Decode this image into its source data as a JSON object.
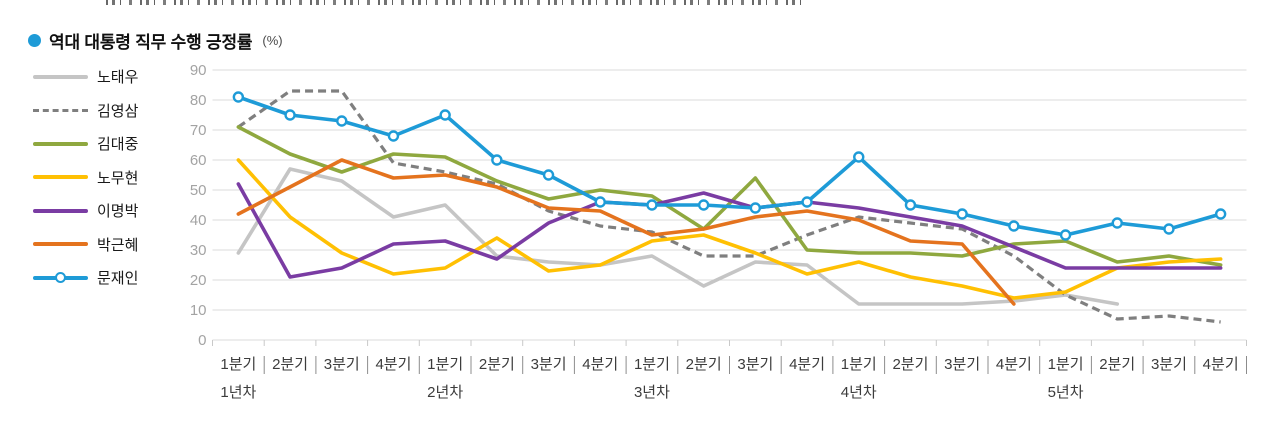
{
  "top_strip": {
    "clipped_partial_text_visible": true
  },
  "title": {
    "bullet_icon": "blue-dot",
    "text": "역대 대통령 직무 수행 긍정률",
    "unit": "(%)"
  },
  "chart_data": {
    "type": "line",
    "title": "역대 대통령 직무 수행 긍정률 (%)",
    "ylim": [
      0,
      90
    ],
    "y_tick_labels": [
      "90",
      "80",
      "70",
      "60",
      "50",
      "40",
      "30",
      "20",
      "10",
      "0"
    ],
    "grid": true,
    "legend_position": "left",
    "quarter_labels": [
      "1분기",
      "2분기",
      "3분기",
      "4분기"
    ],
    "quarters_total": 20,
    "years": [
      {
        "label": "1년차",
        "start_quarter": 0
      },
      {
        "label": "2년차",
        "start_quarter": 4
      },
      {
        "label": "3년차",
        "start_quarter": 8
      },
      {
        "label": "4년차",
        "start_quarter": 12
      },
      {
        "label": "5년차",
        "start_quarter": 16
      }
    ],
    "series": [
      {
        "name": "노태우",
        "color": "#c5c5c5",
        "style": "solid",
        "marker": "none",
        "values": [
          29,
          57,
          53,
          41,
          45,
          28,
          26,
          25,
          28,
          18,
          26,
          25,
          12,
          12,
          12,
          13,
          15,
          12,
          null,
          null
        ]
      },
      {
        "name": "김영삼",
        "color": "#7f7f7f",
        "style": "dashed",
        "marker": "none",
        "values": [
          71,
          83,
          83,
          59,
          56,
          52,
          43,
          38,
          36,
          28,
          28,
          35,
          41,
          39,
          37,
          28,
          15,
          7,
          8,
          6
        ]
      },
      {
        "name": "김대중",
        "color": "#8fa83f",
        "style": "solid",
        "marker": "none",
        "values": [
          71,
          62,
          56,
          62,
          61,
          53,
          47,
          50,
          48,
          37,
          54,
          30,
          29,
          29,
          28,
          32,
          33,
          26,
          28,
          25
        ]
      },
      {
        "name": "노무현",
        "color": "#ffc003",
        "style": "solid",
        "marker": "none",
        "values": [
          60,
          41,
          29,
          22,
          24,
          34,
          23,
          25,
          33,
          35,
          29,
          22,
          26,
          21,
          18,
          14,
          16,
          24,
          26,
          27
        ]
      },
      {
        "name": "이명박",
        "color": "#7a3ca3",
        "style": "solid",
        "marker": "none",
        "values": [
          52,
          21,
          24,
          32,
          33,
          27,
          39,
          46,
          45,
          49,
          44,
          46,
          44,
          41,
          38,
          31,
          24,
          24,
          24,
          24
        ]
      },
      {
        "name": "박근혜",
        "color": "#e4731e",
        "style": "solid",
        "marker": "none",
        "values": [
          42,
          51,
          60,
          54,
          55,
          51,
          44,
          43,
          35,
          37,
          41,
          43,
          40,
          33,
          32,
          12,
          null,
          null,
          null,
          null
        ]
      },
      {
        "name": "문재인",
        "color": "#1e9bd7",
        "style": "solid",
        "marker": "circle",
        "values": [
          81,
          75,
          73,
          68,
          75,
          60,
          55,
          46,
          45,
          45,
          44,
          46,
          61,
          45,
          42,
          38,
          35,
          39,
          37,
          42
        ]
      }
    ]
  },
  "colors": {
    "accent_blue": "#1e9bd7",
    "gridline": "#dbdbdb",
    "tick": "#c9c9c9",
    "label_separator": "#8c8c8c",
    "y_axis_label": "#a3a3a3",
    "x_axis_label": "#3c3c3c"
  }
}
